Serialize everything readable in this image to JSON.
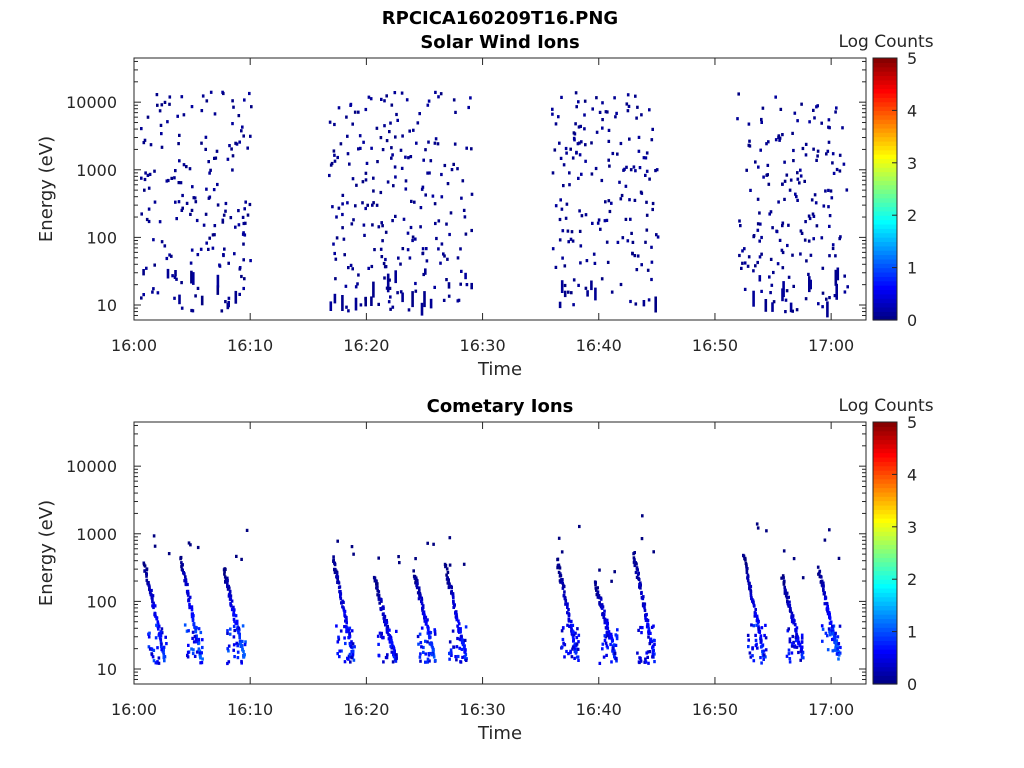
{
  "figure_title": "RPCICA160209T16.PNG",
  "colors": {
    "colormap": "jet",
    "axes": "#262626",
    "background": "#ffffff"
  },
  "chart_data": [
    {
      "type": "heatmap",
      "title": "Solar Wind Ions",
      "xlabel": "Time",
      "ylabel": "Energy (eV)",
      "colorbar_label": "Log Counts",
      "colorbar_ticks": [
        "0",
        "1",
        "2",
        "3",
        "4",
        "5"
      ],
      "colorbar_range": [
        0,
        5
      ],
      "x_tick_labels": [
        "16:00",
        "16:10",
        "16:20",
        "16:30",
        "16:40",
        "16:50",
        "17:00"
      ],
      "y_tick_labels": [
        "10",
        "100",
        "1000",
        "10000"
      ],
      "xlim": [
        "16:00",
        "17:03"
      ],
      "ylim_eV": [
        6,
        45000
      ],
      "yscale": "log",
      "grid": false,
      "bursts": [
        {
          "start_min": 0.5,
          "end_min": 10.0,
          "level": 0
        },
        {
          "start_min": 16.7,
          "end_min": 29.0,
          "level": 0
        },
        {
          "start_min": 35.8,
          "end_min": 45.0,
          "level": 0
        },
        {
          "start_min": 51.8,
          "end_min": 61.5,
          "level": 0
        }
      ],
      "note": "sparse single-count pixels (log counts ~0) spread from ~8 eV to ~15000 eV during each burst"
    },
    {
      "type": "heatmap",
      "title": "Cometary Ions",
      "xlabel": "Time",
      "ylabel": "Energy (eV)",
      "colorbar_label": "Log Counts",
      "colorbar_ticks": [
        "0",
        "1",
        "2",
        "3",
        "4",
        "5"
      ],
      "colorbar_range": [
        0,
        5
      ],
      "x_tick_labels": [
        "16:00",
        "16:10",
        "16:20",
        "16:30",
        "16:40",
        "16:50",
        "17:00"
      ],
      "y_tick_labels": [
        "10",
        "100",
        "1000",
        "10000"
      ],
      "xlim": [
        "16:00",
        "17:03"
      ],
      "ylim_eV": [
        6,
        45000
      ],
      "yscale": "log",
      "grid": false,
      "dispersion_signatures": [
        {
          "t_min": 0.8,
          "e_top": 350,
          "peak": 1.0
        },
        {
          "t_min": 3.9,
          "e_top": 450,
          "peak": 1.2
        },
        {
          "t_min": 7.6,
          "e_top": 300,
          "peak": 1.1
        },
        {
          "t_min": 17.0,
          "e_top": 450,
          "peak": 0.9
        },
        {
          "t_min": 20.6,
          "e_top": 220,
          "peak": 0.8
        },
        {
          "t_min": 24.0,
          "e_top": 280,
          "peak": 1.0
        },
        {
          "t_min": 26.7,
          "e_top": 320,
          "peak": 0.9
        },
        {
          "t_min": 36.3,
          "e_top": 400,
          "peak": 0.8
        },
        {
          "t_min": 39.6,
          "e_top": 180,
          "peak": 0.9
        },
        {
          "t_min": 42.9,
          "e_top": 500,
          "peak": 0.8
        },
        {
          "t_min": 52.4,
          "e_top": 450,
          "peak": 0.9
        },
        {
          "t_min": 55.7,
          "e_top": 220,
          "peak": 0.8
        },
        {
          "t_min": 58.8,
          "e_top": 300,
          "peak": 1.2
        }
      ],
      "note": "dispersed ion structures: energy falls from a few hundred eV to ~15 eV over ~2 min, repeating about every 3.3 min"
    }
  ]
}
